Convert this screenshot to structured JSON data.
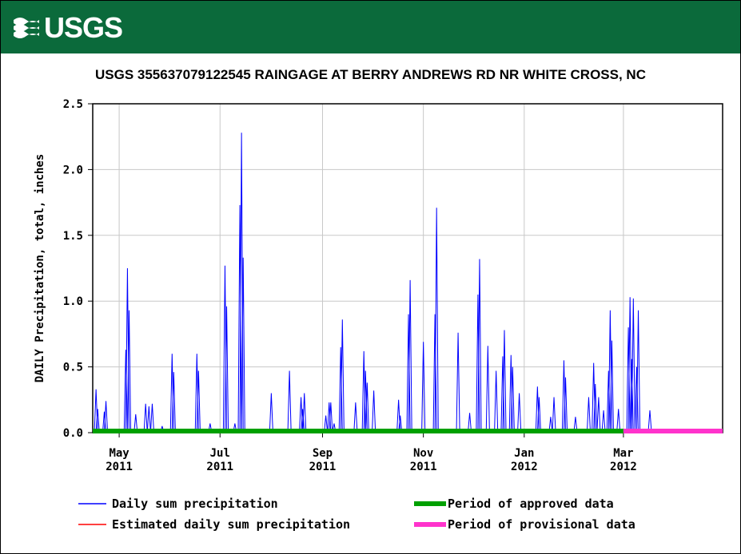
{
  "header": {
    "logo_text": "USGS",
    "brand_color": "#0b6a3b"
  },
  "chart_data": {
    "type": "bar",
    "title": "USGS 355637079122545 RAINGAGE AT BERRY ANDREWS RD NR WHITE CROSS, NC",
    "ylabel": "DAILY Precipitation, total, inches",
    "xlabel": "",
    "ylim": [
      0,
      2.5
    ],
    "xlim": [
      "2011-04-15",
      "2012-04-30"
    ],
    "grid": true,
    "yticks": [
      "0.0",
      "0.5",
      "1.0",
      "1.5",
      "2.0",
      "2.5"
    ],
    "xticks": [
      {
        "month": "May",
        "year": "2011",
        "date": "2011-05-01"
      },
      {
        "month": "Jul",
        "year": "2011",
        "date": "2011-07-01"
      },
      {
        "month": "Sep",
        "year": "2011",
        "date": "2011-09-01"
      },
      {
        "month": "Nov",
        "year": "2011",
        "date": "2011-11-01"
      },
      {
        "month": "Jan",
        "year": "2012",
        "date": "2012-01-01"
      },
      {
        "month": "Mar",
        "year": "2012",
        "date": "2012-03-01"
      }
    ],
    "series": [
      {
        "name": "Daily sum precipitation",
        "color": "#0000ff",
        "points": [
          [
            "2011-04-17",
            0.33
          ],
          [
            "2011-04-18",
            0.18
          ],
          [
            "2011-04-22",
            0.16
          ],
          [
            "2011-04-23",
            0.24
          ],
          [
            "2011-05-05",
            0.63
          ],
          [
            "2011-05-06",
            1.25
          ],
          [
            "2011-05-07",
            0.93
          ],
          [
            "2011-05-11",
            0.14
          ],
          [
            "2011-05-17",
            0.22
          ],
          [
            "2011-05-19",
            0.2
          ],
          [
            "2011-05-21",
            0.22
          ],
          [
            "2011-05-27",
            0.05
          ],
          [
            "2011-06-02",
            0.6
          ],
          [
            "2011-06-03",
            0.46
          ],
          [
            "2011-06-17",
            0.6
          ],
          [
            "2011-06-18",
            0.47
          ],
          [
            "2011-06-25",
            0.07
          ],
          [
            "2011-07-04",
            1.27
          ],
          [
            "2011-07-05",
            0.96
          ],
          [
            "2011-07-10",
            0.07
          ],
          [
            "2011-07-13",
            1.73
          ],
          [
            "2011-07-14",
            2.28
          ],
          [
            "2011-07-15",
            1.33
          ],
          [
            "2011-08-01",
            0.3
          ],
          [
            "2011-08-12",
            0.47
          ],
          [
            "2011-08-19",
            0.27
          ],
          [
            "2011-08-20",
            0.18
          ],
          [
            "2011-08-21",
            0.3
          ],
          [
            "2011-09-03",
            0.13
          ],
          [
            "2011-09-05",
            0.23
          ],
          [
            "2011-09-06",
            0.23
          ],
          [
            "2011-09-08",
            0.07
          ],
          [
            "2011-09-12",
            0.65
          ],
          [
            "2011-09-13",
            0.86
          ],
          [
            "2011-09-21",
            0.23
          ],
          [
            "2011-09-26",
            0.62
          ],
          [
            "2011-09-27",
            0.47
          ],
          [
            "2011-09-28",
            0.38
          ],
          [
            "2011-10-02",
            0.32
          ],
          [
            "2011-10-17",
            0.25
          ],
          [
            "2011-10-18",
            0.13
          ],
          [
            "2011-10-23",
            0.9
          ],
          [
            "2011-10-24",
            1.16
          ],
          [
            "2011-11-01",
            0.69
          ],
          [
            "2011-11-08",
            0.9
          ],
          [
            "2011-11-09",
            1.71
          ],
          [
            "2011-11-22",
            0.76
          ],
          [
            "2011-11-29",
            0.15
          ],
          [
            "2011-12-04",
            1.05
          ],
          [
            "2011-12-05",
            1.32
          ],
          [
            "2011-12-10",
            0.66
          ],
          [
            "2011-12-15",
            0.47
          ],
          [
            "2011-12-19",
            0.58
          ],
          [
            "2011-12-20",
            0.78
          ],
          [
            "2011-12-24",
            0.59
          ],
          [
            "2011-12-25",
            0.5
          ],
          [
            "2011-12-29",
            0.3
          ],
          [
            "2012-01-09",
            0.35
          ],
          [
            "2012-01-10",
            0.27
          ],
          [
            "2012-01-17",
            0.12
          ],
          [
            "2012-01-19",
            0.27
          ],
          [
            "2012-01-25",
            0.55
          ],
          [
            "2012-01-26",
            0.42
          ],
          [
            "2012-02-01",
            0.12
          ],
          [
            "2012-02-09",
            0.27
          ],
          [
            "2012-02-12",
            0.53
          ],
          [
            "2012-02-13",
            0.37
          ],
          [
            "2012-02-15",
            0.27
          ],
          [
            "2012-02-18",
            0.17
          ],
          [
            "2012-02-21",
            0.47
          ],
          [
            "2012-02-22",
            0.93
          ],
          [
            "2012-02-23",
            0.7
          ],
          [
            "2012-02-27",
            0.18
          ],
          [
            "2012-03-04",
            0.8
          ],
          [
            "2012-03-05",
            1.03
          ],
          [
            "2012-03-06",
            0.56
          ],
          [
            "2012-03-07",
            1.02
          ],
          [
            "2012-03-09",
            0.5
          ],
          [
            "2012-03-10",
            0.93
          ],
          [
            "2012-03-17",
            0.17
          ]
        ]
      },
      {
        "name": "Estimated daily sum precipitation",
        "color": "#ff0000",
        "points": []
      }
    ],
    "periods": [
      {
        "name": "Period of approved data",
        "color": "#00a000",
        "start": "2011-04-15",
        "end": "2012-03-01"
      },
      {
        "name": "Period of provisional data",
        "color": "#ff33cc",
        "start": "2012-03-01",
        "end": "2012-04-30"
      }
    ],
    "legend": {
      "placement": "bottom",
      "items": [
        {
          "label": "Daily sum precipitation",
          "color": "#0000ff",
          "kind": "line"
        },
        {
          "label": "Period of approved data",
          "color": "#00a000",
          "kind": "bar"
        },
        {
          "label": "Estimated daily sum precipitation",
          "color": "#ff0000",
          "kind": "line"
        },
        {
          "label": "Period of provisional data",
          "color": "#ff33cc",
          "kind": "bar"
        }
      ]
    }
  }
}
